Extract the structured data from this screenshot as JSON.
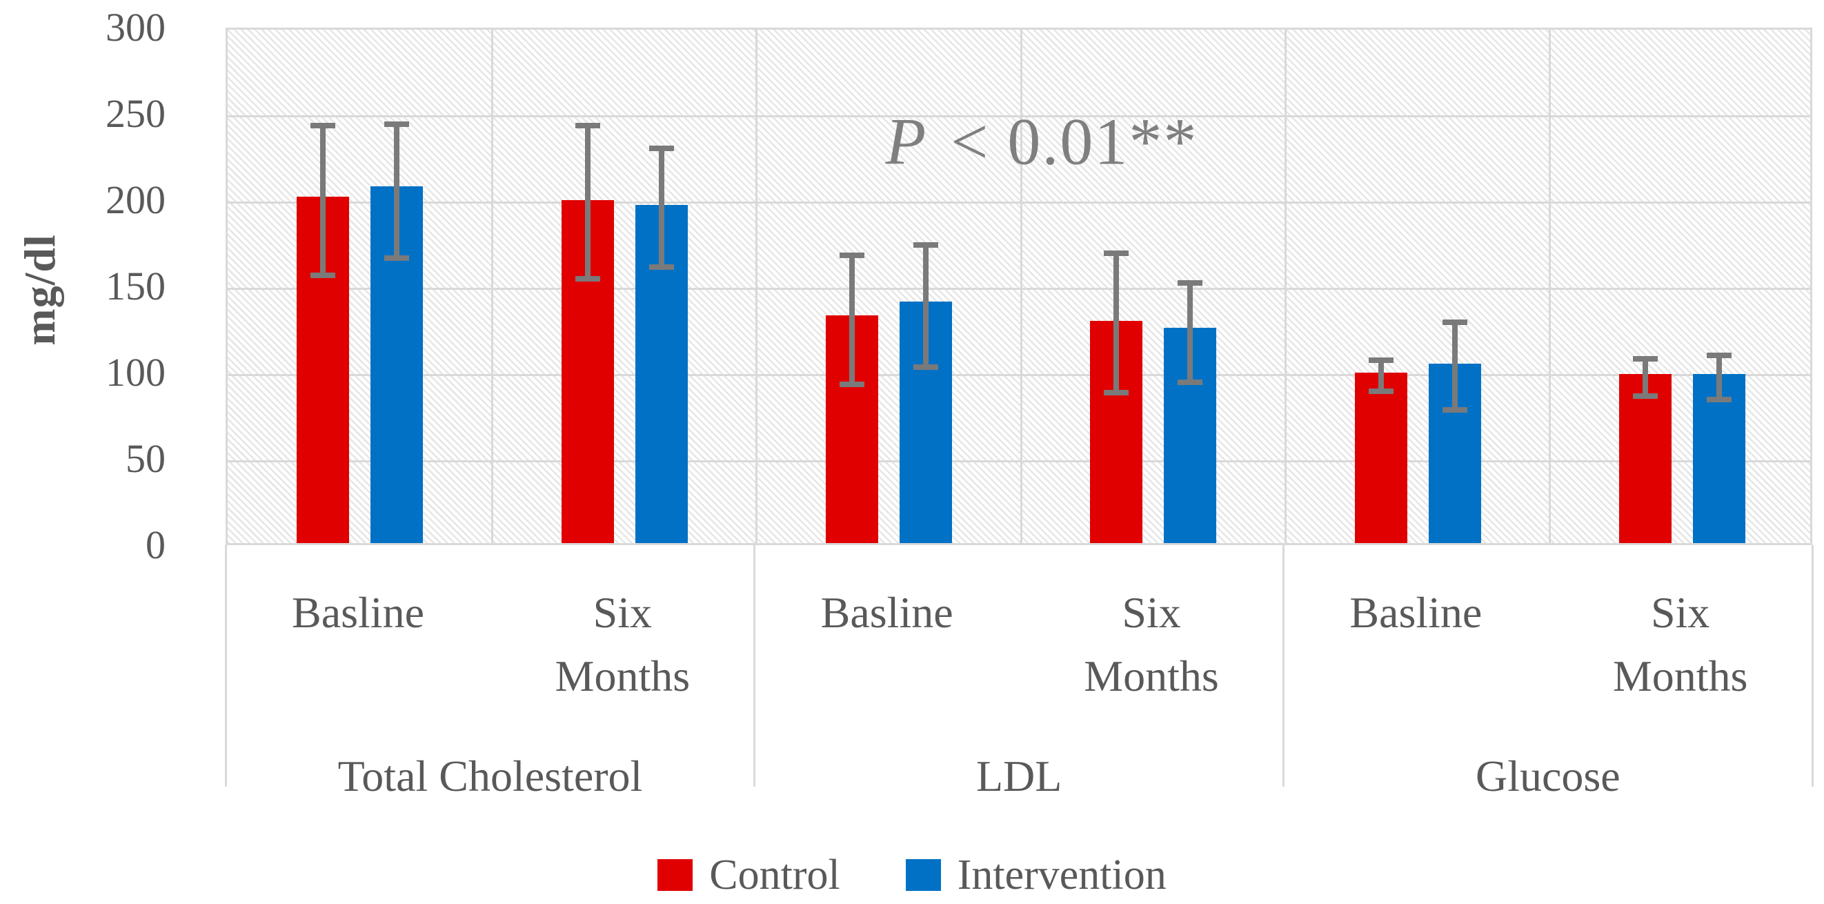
{
  "chart_data": {
    "type": "bar",
    "ylabel": "mg/dl",
    "ylim": [
      0,
      300
    ],
    "yticks": [
      300,
      250,
      200,
      150,
      100,
      50,
      0
    ],
    "grid": true,
    "plot_background": "hatched-diagonal",
    "annotation": {
      "text_italic": "P",
      "text_rest": " < 0.01**",
      "full": "P < 0.01**"
    },
    "series": [
      {
        "name": "Control",
        "color": "#e00000"
      },
      {
        "name": "Intervention",
        "color": "#0071c5"
      }
    ],
    "error_bar_color": "#7a7a7a",
    "legend": {
      "position": "bottom-center",
      "items": [
        "Control",
        "Intervention"
      ]
    },
    "groups": [
      {
        "label": "Total Cholesterol",
        "categories": [
          {
            "label": "Basline",
            "lines": [
              "Basline"
            ],
            "values": [
              201,
              207
            ],
            "error_ranges": [
              [
                156,
                246
              ],
              [
                166,
                247
              ]
            ]
          },
          {
            "label": "Six Months",
            "lines": [
              "Six",
              "Months"
            ],
            "values": [
              199,
              196
            ],
            "error_ranges": [
              [
                154,
                246
              ],
              [
                161,
                233
              ]
            ]
          }
        ]
      },
      {
        "label": "LDL",
        "categories": [
          {
            "label": "Basline",
            "lines": [
              "Basline"
            ],
            "values": [
              132,
              140
            ],
            "error_ranges": [
              [
                93,
                171
              ],
              [
                103,
                177
              ]
            ]
          },
          {
            "label": "Six Months",
            "lines": [
              "Six",
              "Months"
            ],
            "values": [
              129,
              125
            ],
            "error_ranges": [
              [
                88,
                172
              ],
              [
                94,
                155
              ]
            ]
          }
        ]
      },
      {
        "label": "Glucose",
        "categories": [
          {
            "label": "Basline",
            "lines": [
              "Basline"
            ],
            "values": [
              99,
              104
            ],
            "error_ranges": [
              [
                89,
                110
              ],
              [
                78,
                132
              ]
            ]
          },
          {
            "label": "Six Months",
            "lines": [
              "Six",
              "Months"
            ],
            "values": [
              98,
              98
            ],
            "error_ranges": [
              [
                86,
                111
              ],
              [
                84,
                113
              ]
            ]
          }
        ]
      }
    ],
    "colors": {
      "axis_text": "#595959",
      "gridline": "#d9d9d9",
      "annotation_text": "#7f7f7f"
    }
  }
}
